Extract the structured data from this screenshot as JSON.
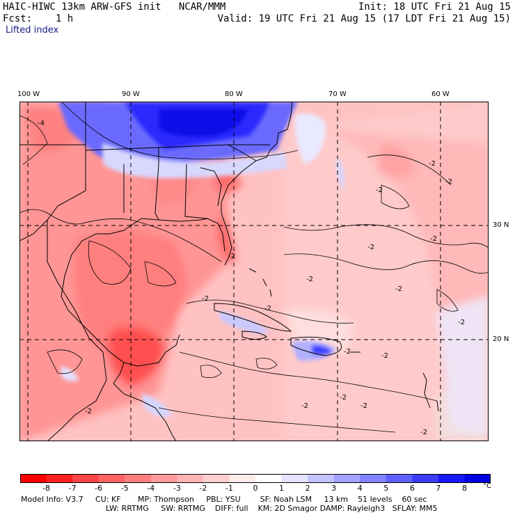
{
  "header": {
    "model": "HAIC-HIWC 13km ARW-GFS init   NCAR/MMM",
    "init": "Init: 18 UTC Fri 21 Aug 15",
    "fcst": "Fcst:    1 h",
    "valid": "Valid: 19 UTC Fri 21 Aug 15 (17 LDT Fri 21 Aug 15)",
    "field": "Lifted index"
  },
  "map": {
    "lon_labels": [
      "100 W",
      "90 W",
      "80 W",
      "70 W",
      "60 W"
    ],
    "lat_labels": [
      "30 N",
      "20 N"
    ],
    "contour_labels": [
      "-4",
      "-2",
      "-2",
      "-2",
      "-2",
      "-2",
      "-2",
      "-2",
      "-2",
      "-2",
      "-2",
      "-2",
      "-2",
      "-2",
      "-2",
      "-2",
      "-2",
      "-2",
      "-2"
    ]
  },
  "colorbar": {
    "ticks": [
      "-8",
      "-7",
      "-6",
      "-5",
      "-4",
      "-3",
      "-2",
      "-1",
      "0",
      "1",
      "2",
      "3",
      "4",
      "5",
      "6",
      "7",
      "8"
    ],
    "unit": "°C",
    "colors": [
      "#ff0000",
      "#ff2020",
      "#ff4545",
      "#ff6363",
      "#ff7f7f",
      "#ff9a9a",
      "#ffb4b4",
      "#ffcfcf",
      "#ffeaea",
      "#ffffff",
      "#e3e3ff",
      "#c2c2ff",
      "#a2a2ff",
      "#8282ff",
      "#6060ff",
      "#3c3cff",
      "#1818ff",
      "#0000e0"
    ]
  },
  "model_info": {
    "line1": "Model Info: V3.7     CU: KF       MP: Thompson     PBL: YSU        SF: Noah LSM     13 km    51 levels    60 sec",
    "line2": "LW: RRTMG     SW: RRTMG    DIFF: full    KM: 2D Smagor DAMP: Rayleigh3   SFLAY: MM5"
  }
}
